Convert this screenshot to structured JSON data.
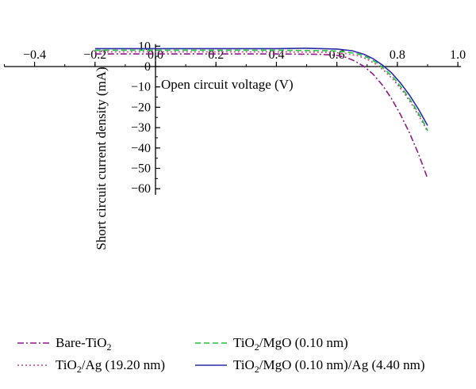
{
  "chart_data": {
    "type": "line",
    "xlabel": "Open circuit voltage (V)",
    "ylabel": "Short circuit current density (mA)",
    "xlim": [
      -0.5,
      1.0
    ],
    "ylim": [
      -63,
      11
    ],
    "x_ticks": [
      -0.4,
      -0.2,
      0.0,
      0.2,
      0.4,
      0.6,
      0.8,
      1.0
    ],
    "x_tick_labels": [
      "−0.4",
      "−0.2",
      "0.0",
      "0.2",
      "0.4",
      "0.6",
      "0.8",
      "1.0"
    ],
    "y_ticks": [
      10,
      0,
      -10,
      -20,
      -30,
      -40,
      -50,
      -60
    ],
    "y_tick_labels": [
      "10",
      "0",
      "−10",
      "−20",
      "−30",
      "−40",
      "−50",
      "−60"
    ],
    "grid": false,
    "legend_position": "bottom",
    "series": [
      {
        "name": "Bare-TiO2",
        "name_main": "Bare-TiO",
        "name_sub": "2",
        "color": "#8b1a8b",
        "dash": "8,3,2,3",
        "x": [
          -0.2,
          0.0,
          0.2,
          0.4,
          0.55,
          0.6,
          0.63,
          0.66,
          0.69,
          0.72,
          0.75,
          0.78,
          0.81,
          0.84,
          0.87,
          0.9
        ],
        "y": [
          6.2,
          6.2,
          6.2,
          6.2,
          6.0,
          5.5,
          4.5,
          2.7,
          0.0,
          -3.8,
          -9.0,
          -15.6,
          -23.5,
          -32.5,
          -43.0,
          -55.0
        ]
      },
      {
        "name": "TiO2/Ag (19.20 nm)",
        "name_main": "TiO",
        "name_sub": "2",
        "name_rest": "/Ag (19.20 nm)",
        "color": "#c04080",
        "dash": "2,3",
        "x": [
          -0.2,
          0.0,
          0.2,
          0.4,
          0.58,
          0.63,
          0.67,
          0.7,
          0.73,
          0.76,
          0.79,
          0.82,
          0.85,
          0.88,
          0.9
        ],
        "y": [
          7.2,
          7.2,
          7.2,
          7.2,
          7.0,
          6.4,
          5.3,
          3.6,
          1.0,
          -2.5,
          -7.0,
          -12.5,
          -19.0,
          -26.5,
          -32.0
        ]
      },
      {
        "name": "TiO2/MgO (0.10 nm)",
        "name_main": "TiO",
        "name_sub": "2",
        "name_rest": "/MgO (0.10 nm)",
        "color": "#22c23a",
        "dash": "7,4",
        "x": [
          -0.2,
          0.0,
          0.2,
          0.4,
          0.58,
          0.63,
          0.67,
          0.7,
          0.73,
          0.76,
          0.79,
          0.82,
          0.85,
          0.88,
          0.9
        ],
        "y": [
          8.0,
          8.0,
          8.0,
          8.0,
          7.8,
          7.2,
          6.2,
          4.5,
          2.0,
          -1.5,
          -6.0,
          -11.5,
          -18.0,
          -25.5,
          -31.5
        ]
      },
      {
        "name": "TiO2/MgO (0.10 nm)/Ag (4.40 nm)",
        "name_main": "TiO",
        "name_sub": "2",
        "name_rest": "/MgO (0.10 nm)/Ag (4.40 nm)",
        "color": "#2a2aa8",
        "dash": "",
        "x": [
          -0.2,
          0.0,
          0.2,
          0.4,
          0.5,
          0.6,
          0.65,
          0.69,
          0.72,
          0.75,
          0.78,
          0.81,
          0.84,
          0.87,
          0.9
        ],
        "y": [
          8.8,
          8.8,
          8.8,
          8.8,
          9.0,
          8.6,
          7.8,
          6.0,
          3.8,
          0.8,
          -3.0,
          -8.0,
          -14.0,
          -21.0,
          -29.0
        ]
      }
    ]
  }
}
